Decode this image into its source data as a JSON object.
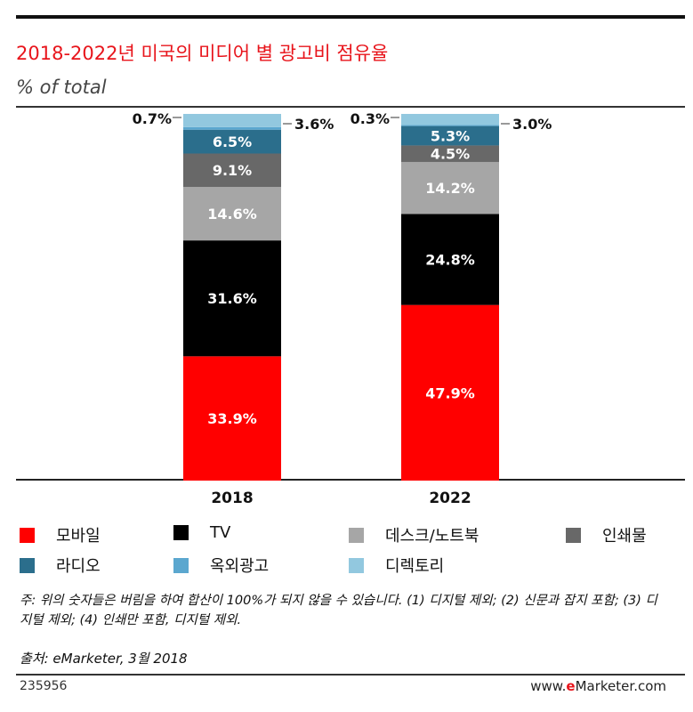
{
  "header": {
    "title": "2018-2022년 미국의 미디어 별 광고비 점유율",
    "subtitle": "% of total"
  },
  "chart_data": {
    "type": "bar",
    "stacked": true,
    "title": "2018-2022년 미국의 미디어 별 광고비 점유율",
    "ylabel": "% of total",
    "xlabel": "",
    "ylim": [
      0,
      100
    ],
    "categories": [
      "2018",
      "2022"
    ],
    "series": [
      {
        "name": "모바일",
        "color": "#ff0000",
        "values": [
          33.9,
          47.9
        ],
        "labels": [
          "33.9%",
          "47.9%"
        ]
      },
      {
        "name": "TV",
        "color": "#000000",
        "values": [
          31.6,
          24.8
        ],
        "labels": [
          "31.6%",
          "24.8%"
        ]
      },
      {
        "name": "데스크/노트북",
        "color": "#a6a6a6",
        "values": [
          14.6,
          14.2
        ],
        "labels": [
          "14.6%",
          "14.2%"
        ]
      },
      {
        "name": "인쇄물",
        "color": "#686868",
        "values": [
          9.1,
          4.5
        ],
        "labels": [
          "9.1%",
          "4.5%"
        ]
      },
      {
        "name": "라디오",
        "color": "#2b6e8c",
        "values": [
          6.5,
          5.3
        ],
        "labels": [
          "6.5%",
          "5.3%"
        ]
      },
      {
        "name": "옥외광고",
        "color": "#5ba7cf",
        "values": [
          0.7,
          0.3
        ],
        "labels": [
          "0.7%",
          "0.3%"
        ]
      },
      {
        "name": "디렉토리",
        "color": "#92c8df",
        "values": [
          3.6,
          3.0
        ],
        "labels": [
          "3.6%",
          "3.0%"
        ]
      }
    ]
  },
  "legend": [
    {
      "label": "모바일",
      "color": "#ff0000"
    },
    {
      "label": "TV",
      "color": "#000000"
    },
    {
      "label": "데스크/노트북",
      "color": "#a6a6a6"
    },
    {
      "label": "인쇄물",
      "color": "#686868"
    },
    {
      "label": "라디오",
      "color": "#2b6e8c"
    },
    {
      "label": "옥외광고",
      "color": "#5ba7cf"
    },
    {
      "label": "디렉토리",
      "color": "#92c8df"
    }
  ],
  "note": "주: 위의 숫자들은 버림을 하여 합산이 100%가 되지 않을 수 있습니다. (1) 디지털 제외; (2) 신문과 잡지 포함; (3) 디지털 제외; (4) 인쇄만 포함, 디지털 제외.",
  "source": "출처: eMarketer, 3월 2018",
  "footer": {
    "id": "235956",
    "site_prefix": "www.",
    "site_brand_e": "e",
    "site_rest": "Marketer.com"
  }
}
